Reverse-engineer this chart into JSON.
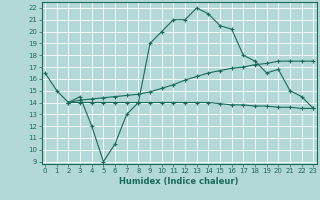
{
  "bg_color": "#b2d8d8",
  "grid_color": "#ffffff",
  "line_color": "#1a6b5a",
  "line1_x": [
    0,
    1,
    2,
    3,
    4,
    5,
    6,
    7,
    8,
    9,
    10,
    11,
    12,
    13,
    14,
    15,
    16,
    17,
    18,
    19,
    20,
    21,
    22,
    23
  ],
  "line1_y": [
    16.5,
    15.0,
    14.0,
    14.5,
    12.0,
    9.0,
    10.5,
    13.0,
    14.0,
    19.0,
    20.0,
    21.0,
    21.0,
    22.0,
    21.5,
    20.5,
    20.2,
    18.0,
    17.5,
    16.5,
    16.8,
    15.0,
    14.5,
    13.5
  ],
  "line2_x": [
    2,
    3,
    4,
    5,
    6,
    7,
    8,
    9,
    10,
    11,
    12,
    13,
    14,
    15,
    16,
    17,
    18,
    19,
    20,
    21,
    22,
    23
  ],
  "line2_y": [
    14.0,
    14.2,
    14.3,
    14.4,
    14.5,
    14.6,
    14.7,
    14.9,
    15.2,
    15.5,
    15.9,
    16.2,
    16.5,
    16.7,
    16.9,
    17.0,
    17.2,
    17.3,
    17.5,
    17.5,
    17.5,
    17.5
  ],
  "line3_x": [
    2,
    3,
    4,
    5,
    6,
    7,
    8,
    9,
    10,
    11,
    12,
    13,
    14,
    15,
    16,
    17,
    18,
    19,
    20,
    21,
    22,
    23
  ],
  "line3_y": [
    14.0,
    14.0,
    14.0,
    14.0,
    14.0,
    14.0,
    14.0,
    14.0,
    14.0,
    14.0,
    14.0,
    14.0,
    14.0,
    13.9,
    13.8,
    13.8,
    13.7,
    13.7,
    13.6,
    13.6,
    13.5,
    13.5
  ],
  "xlabel": "Humidex (Indice chaleur)",
  "xlabel_fontsize": 6,
  "xlabel_color": "#1a6b5a",
  "yticks": [
    9,
    10,
    11,
    12,
    13,
    14,
    15,
    16,
    17,
    18,
    19,
    20,
    21,
    22
  ],
  "xticks": [
    0,
    1,
    2,
    3,
    4,
    5,
    6,
    7,
    8,
    9,
    10,
    11,
    12,
    13,
    14,
    15,
    16,
    17,
    18,
    19,
    20,
    21,
    22,
    23
  ],
  "xlim": [
    -0.3,
    23.3
  ],
  "ylim": [
    8.8,
    22.5
  ]
}
